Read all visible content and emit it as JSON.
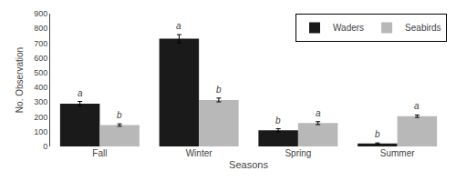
{
  "chart_data": {
    "type": "bar",
    "categories": [
      "Fall",
      "Winter",
      "Spring",
      "Summer"
    ],
    "series": [
      {
        "name": "Waders",
        "color": "#1a1a1a",
        "values": [
          290,
          730,
          110,
          20
        ],
        "errors": [
          15,
          28,
          10,
          4
        ],
        "annotations": [
          "a",
          "a",
          "b",
          "b"
        ]
      },
      {
        "name": "Seabirds",
        "color": "#b8b8b8",
        "values": [
          145,
          315,
          158,
          205
        ],
        "errors": [
          8,
          13,
          10,
          8
        ],
        "annotations": [
          "b",
          "b",
          "a",
          "a"
        ]
      }
    ],
    "xlabel": "Seasons",
    "ylabel": "No. Observation",
    "ylim": [
      0,
      900
    ],
    "yticks": [
      0,
      100,
      200,
      300,
      400,
      500,
      600,
      700,
      800,
      900
    ],
    "grid": false,
    "legend": "upper right"
  }
}
